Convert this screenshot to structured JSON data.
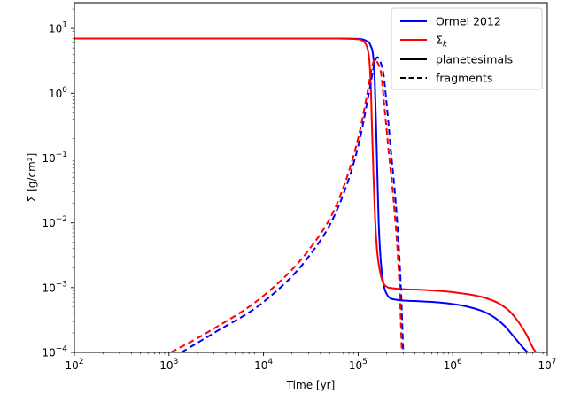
{
  "chart_data": {
    "type": "line",
    "xlabel": "Time [yr]",
    "ylabel": "Σ [g/cm²]",
    "xscale": "log",
    "yscale": "log",
    "xlim": [
      100,
      10000000
    ],
    "ylim": [
      0.0001,
      25
    ],
    "grid": false,
    "legend_position": "top-right",
    "x_ticks": [
      {
        "value": 100,
        "base": "10",
        "exp": "2"
      },
      {
        "value": 1000,
        "base": "10",
        "exp": "3"
      },
      {
        "value": 10000,
        "base": "10",
        "exp": "4"
      },
      {
        "value": 100000,
        "base": "10",
        "exp": "5"
      },
      {
        "value": 1000000,
        "base": "10",
        "exp": "6"
      },
      {
        "value": 10000000,
        "base": "10",
        "exp": "7"
      }
    ],
    "y_ticks": [
      {
        "value": 0.0001,
        "base": "10",
        "exp": "−4"
      },
      {
        "value": 0.001,
        "base": "10",
        "exp": "−3"
      },
      {
        "value": 0.01,
        "base": "10",
        "exp": "−2"
      },
      {
        "value": 0.1,
        "base": "10",
        "exp": "−1"
      },
      {
        "value": 1,
        "base": "10",
        "exp": "0"
      },
      {
        "value": 10,
        "base": "10",
        "exp": "1"
      }
    ],
    "legend": [
      {
        "label": "Ormel 2012",
        "color": "#0000ff",
        "style": "solid"
      },
      {
        "label": "Σ",
        "sub": "k",
        "color": "#ff0000",
        "style": "solid"
      },
      {
        "label": "planetesimals",
        "color": "#000000",
        "style": "solid"
      },
      {
        "label": "fragments",
        "color": "#000000",
        "style": "dashed"
      }
    ],
    "series": [
      {
        "method": "Ormel 2012",
        "population": "planetesimals",
        "color": "#0000ff",
        "dash": false,
        "points": [
          [
            100,
            7.0
          ],
          [
            10000,
            7.0
          ],
          [
            50000,
            7.0
          ],
          [
            100000,
            6.9
          ],
          [
            120000,
            6.5
          ],
          [
            135000,
            5.5
          ],
          [
            145000,
            3.5
          ],
          [
            150000,
            1.5
          ],
          [
            155000,
            0.3
          ],
          [
            160000,
            0.05
          ],
          [
            165000,
            0.01
          ],
          [
            170000,
            0.004
          ],
          [
            180000,
            0.0015
          ],
          [
            200000,
            0.0008
          ],
          [
            250000,
            0.00065
          ],
          [
            400000,
            0.00062
          ],
          [
            800000,
            0.00058
          ],
          [
            1500000,
            0.0005
          ],
          [
            2500000,
            0.00038
          ],
          [
            3500000,
            0.00026
          ],
          [
            4500000,
            0.00017
          ],
          [
            5500000,
            0.00012
          ],
          [
            6200000,
            0.0001
          ]
        ]
      },
      {
        "method": "Σk",
        "population": "planetesimals",
        "color": "#ff0000",
        "dash": false,
        "points": [
          [
            100,
            7.0
          ],
          [
            10000,
            7.0
          ],
          [
            50000,
            7.0
          ],
          [
            100000,
            6.8
          ],
          [
            115000,
            6.2
          ],
          [
            125000,
            5.0
          ],
          [
            132000,
            3.0
          ],
          [
            137000,
            1.0
          ],
          [
            140000,
            0.3
          ],
          [
            145000,
            0.06
          ],
          [
            150000,
            0.015
          ],
          [
            158000,
            0.004
          ],
          [
            170000,
            0.0018
          ],
          [
            190000,
            0.0011
          ],
          [
            230000,
            0.00098
          ],
          [
            500000,
            0.00092
          ],
          [
            1000000,
            0.00085
          ],
          [
            2000000,
            0.00072
          ],
          [
            3000000,
            0.00058
          ],
          [
            4000000,
            0.00043
          ],
          [
            5000000,
            0.00029
          ],
          [
            6000000,
            0.00019
          ],
          [
            7000000,
            0.00012
          ],
          [
            7600000,
            0.0001
          ]
        ]
      },
      {
        "method": "Ormel 2012",
        "population": "fragments",
        "color": "#0000ff",
        "dash": true,
        "points": [
          [
            1350,
            0.0001
          ],
          [
            3000,
            0.0002
          ],
          [
            10000,
            0.0006
          ],
          [
            30000,
            0.003
          ],
          [
            60000,
            0.016
          ],
          [
            100000,
            0.15
          ],
          [
            130000,
            1.0
          ],
          [
            150000,
            3.0
          ],
          [
            160000,
            3.6
          ],
          [
            170000,
            3.2
          ],
          [
            185000,
            2.0
          ],
          [
            200000,
            0.7
          ],
          [
            220000,
            0.15
          ],
          [
            250000,
            0.02
          ],
          [
            270000,
            0.004
          ],
          [
            285000,
            0.0008
          ],
          [
            300000,
            0.0001
          ]
        ]
      },
      {
        "method": "Σk",
        "population": "fragments",
        "color": "#ff0000",
        "dash": true,
        "points": [
          [
            1050,
            0.0001
          ],
          [
            2500,
            0.0002
          ],
          [
            10000,
            0.00075
          ],
          [
            30000,
            0.0038
          ],
          [
            60000,
            0.02
          ],
          [
            100000,
            0.2
          ],
          [
            125000,
            1.0
          ],
          [
            140000,
            2.5
          ],
          [
            150000,
            3.3
          ],
          [
            160000,
            3.0
          ],
          [
            175000,
            2.0
          ],
          [
            190000,
            0.6
          ],
          [
            210000,
            0.13
          ],
          [
            240000,
            0.018
          ],
          [
            260000,
            0.004
          ],
          [
            275000,
            0.0009
          ],
          [
            290000,
            0.0001
          ]
        ]
      }
    ]
  }
}
